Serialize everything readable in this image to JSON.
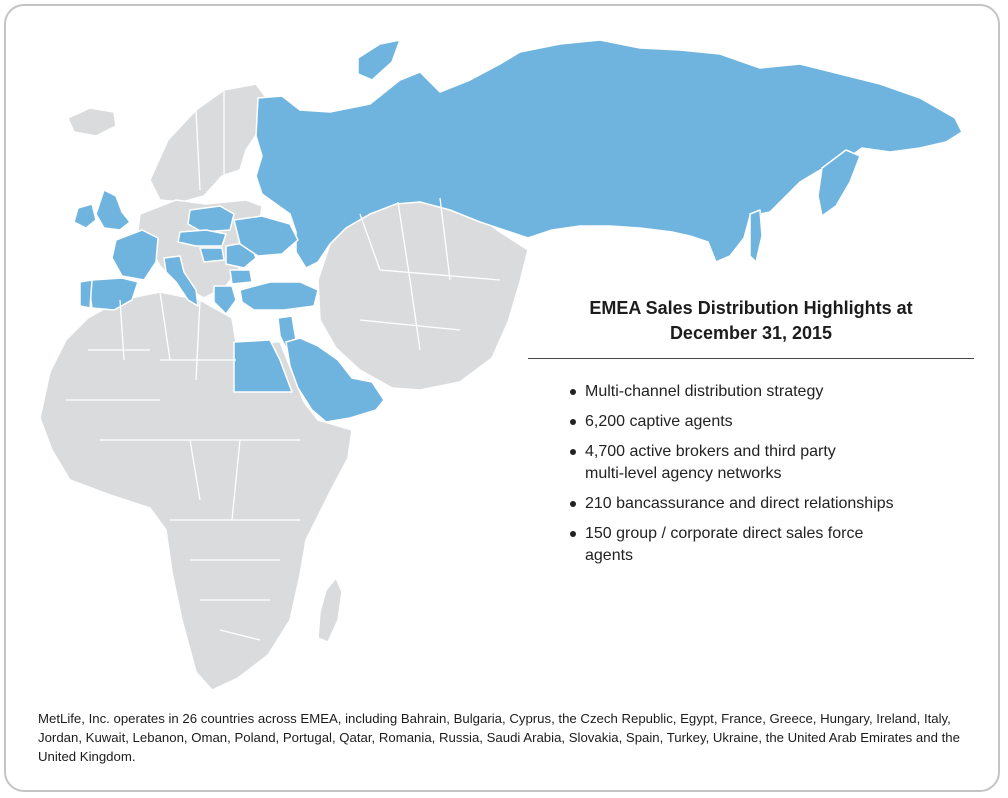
{
  "panel": {
    "title_line1": "EMEA Sales Distribution Highlights at",
    "title_line2": "December 31, 2015",
    "bullets": [
      {
        "line1": "Multi-channel distribution strategy",
        "line2": ""
      },
      {
        "line1": "6,200 captive agents",
        "line2": ""
      },
      {
        "line1": "4,700 active brokers and third party",
        "line2": "multi-level agency networks"
      },
      {
        "line1": "210 bancassurance and direct relationships",
        "line2": ""
      },
      {
        "line1": "150 group / corporate direct sales force",
        "line2": "agents"
      }
    ]
  },
  "footnote": "MetLife, Inc. operates in 26 countries across EMEA, including Bahrain, Bulgaria, Cyprus, the Czech Republic, Egypt, France, Greece, Hungary, Ireland, Italy, Jordan, Kuwait, Lebanon, Oman, Poland, Portugal, Qatar, Romania, Russia, Saudi Arabia, Slovakia, Spain, Turkey, Ukraine, the United Arab Emirates and the United Kingdom.",
  "map": {
    "highlighted_countries": [
      "Bahrain",
      "Bulgaria",
      "Cyprus",
      "Czech Republic",
      "Egypt",
      "France",
      "Greece",
      "Hungary",
      "Ireland",
      "Italy",
      "Jordan",
      "Kuwait",
      "Lebanon",
      "Oman",
      "Poland",
      "Portugal",
      "Qatar",
      "Romania",
      "Russia",
      "Saudi Arabia",
      "Slovakia",
      "Spain",
      "Turkey",
      "Ukraine",
      "United Arab Emirates",
      "United Kingdom"
    ],
    "colors": {
      "highlighted": "#6fb4df",
      "other_land": "#dadbdc",
      "borders": "#ffffff",
      "frame": "#c4c4c4"
    }
  }
}
